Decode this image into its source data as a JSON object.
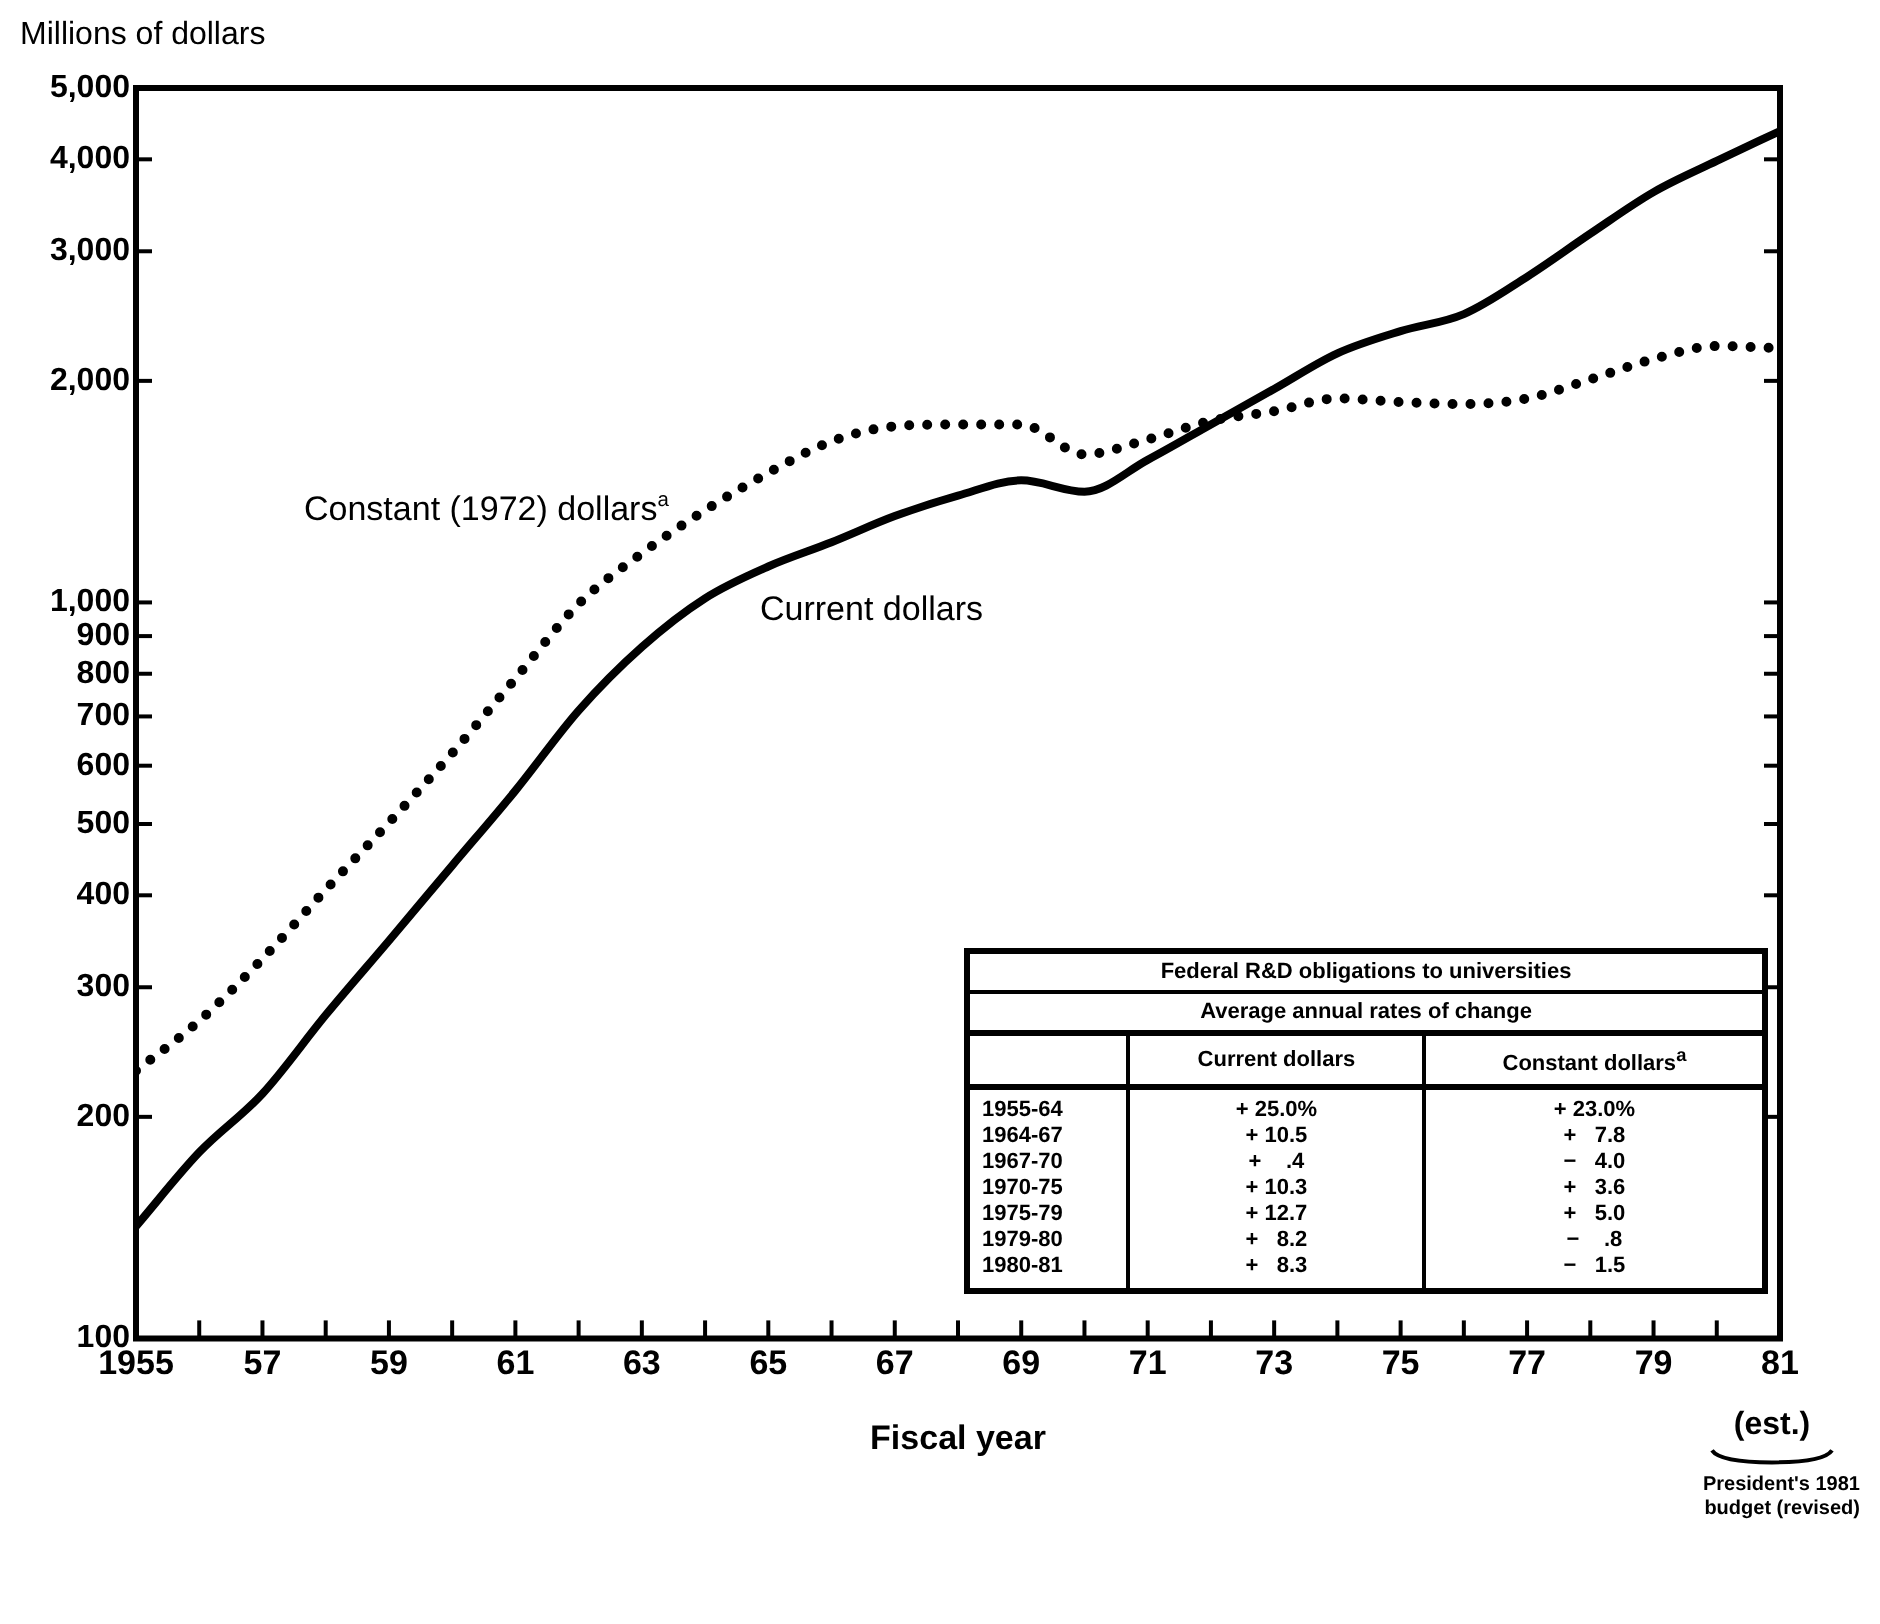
{
  "chart_data": [
    {
      "type": "line",
      "ylabel": "Millions of dollars",
      "xlabel": "Fiscal year",
      "log": "y",
      "grid": false,
      "legend": false,
      "marker": "none",
      "x": [
        1955,
        1956,
        1957,
        1958,
        1959,
        1960,
        1961,
        1962,
        1963,
        1964,
        1965,
        1966,
        1967,
        1968,
        1969,
        1970,
        1971,
        1972,
        1973,
        1974,
        1975,
        1976,
        1977,
        1978,
        1979,
        1980,
        1981
      ],
      "series": [
        {
          "name": "Current dollars",
          "color": "#000000",
          "line_style": "solid",
          "values": [
            142,
            179,
            215,
            275,
            347,
            439,
            555,
            713,
            870,
            1013,
            1119,
            1207,
            1310,
            1397,
            1465,
            1414,
            1562,
            1745,
            1950,
            2180,
            2337,
            2465,
            2770,
            3170,
            3610,
            3980,
            4370
          ]
        },
        {
          "name": "Constant (1972) dollars$^{a}$",
          "color": "#000000",
          "line_style": "dotted",
          "values": [
            231,
            270,
            328,
            407,
            502,
            624,
            788,
            995,
            1166,
            1334,
            1500,
            1655,
            1735,
            1745,
            1745,
            1589,
            1665,
            1765,
            1819,
            1893,
            1872,
            1860,
            1893,
            2009,
            2141,
            2230,
            2216
          ]
        }
      ],
      "xlim": [
        1955,
        1981
      ],
      "xticks": [
        1955,
        {
          "value": 1956,
          "label": null
        },
        {
          "value": 1957,
          "label": "57"
        },
        {
          "value": 1958,
          "label": null
        },
        {
          "value": 1959,
          "label": "59"
        },
        {
          "value": 1960,
          "label": null
        },
        {
          "value": 1961,
          "label": "61"
        },
        {
          "value": 1962,
          "label": null
        },
        {
          "value": 1963,
          "label": "63"
        },
        {
          "value": 1964,
          "label": null
        },
        {
          "value": 1965,
          "label": "65"
        },
        {
          "value": 1966,
          "label": null
        },
        {
          "value": 1967,
          "label": "67"
        },
        {
          "value": 1968,
          "label": null
        },
        {
          "value": 1969,
          "label": "69"
        },
        {
          "value": 1970,
          "label": null
        },
        {
          "value": 1971,
          "label": "71"
        },
        {
          "value": 1972,
          "label": null
        },
        {
          "value": 1973,
          "label": "73"
        },
        {
          "value": 1974,
          "label": null
        },
        {
          "value": 1975,
          "label": "75"
        },
        {
          "value": 1976,
          "label": null
        },
        {
          "value": 1977,
          "label": "77"
        },
        {
          "value": 1978,
          "label": null
        },
        {
          "value": 1979,
          "label": "79"
        },
        {
          "value": 1980,
          "label": null
        },
        {
          "value": 1981,
          "label": "81"
        }
      ],
      "ylim": [
        100,
        5000
      ],
      "yticks": [
        100,
        200,
        300,
        400,
        500,
        600,
        700,
        800,
        900,
        {
          "value": 1000,
          "label": "1,000"
        },
        {
          "value": 2000,
          "label": "2,000"
        },
        {
          "value": 3000,
          "label": "3,000"
        },
        {
          "value": 4000,
          "label": "4,000"
        },
        {
          "value": 5000,
          "label": "5,000"
        }
      ],
      "annotations": [
        "(est.)",
        "President's 1981 budget (revised)"
      ]
    },
    {
      "type": "other",
      "title": "Federal R&D obligations to universities",
      "subtitle": "Average annual rates of change",
      "categories": [
        "1955-64",
        "1964-67",
        "1967-70",
        "1970-75",
        "1975-79",
        "1979-80",
        "1980-81"
      ],
      "series": [
        {
          "name": "Current dollars",
          "values": [
            25.0,
            10.5,
            0.4,
            10.3,
            12.7,
            8.2,
            8.3
          ],
          "value_labels": [
            "+ 25.0%",
            "+ 10.5",
            "+    .4",
            "+ 10.3",
            "+ 12.7",
            "+   8.2",
            "+   8.3"
          ]
        },
        {
          "name": "Constant dollars$^{a}$",
          "values": [
            23.0,
            7.8,
            -4.0,
            3.6,
            5.0,
            -0.8,
            -1.5
          ],
          "value_labels": [
            "+ 23.0%",
            "+   7.8",
            "−   4.0",
            "+   3.6",
            "+   5.0",
            "−    .8",
            "−   1.5"
          ]
        }
      ]
    }
  ]
}
